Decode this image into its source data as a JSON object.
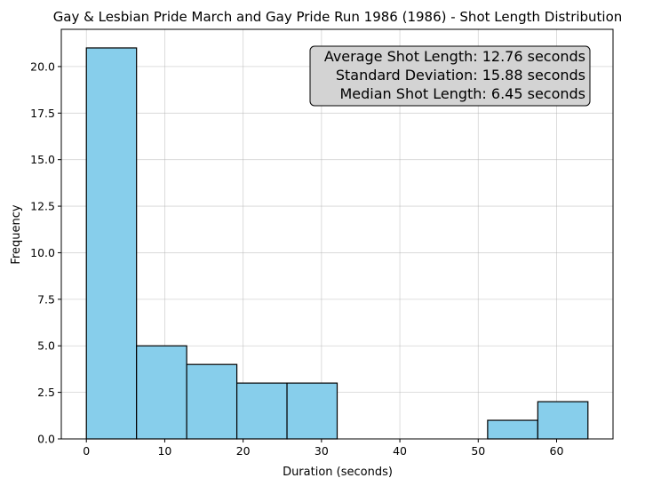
{
  "chart_data": {
    "type": "bar",
    "title": "Gay & Lesbian Pride March and Gay Pride Run 1986 (1986) - Shot Length Distribution",
    "xlabel": "Duration (seconds)",
    "ylabel": "Frequency",
    "xlim": [
      -3.2,
      67.2
    ],
    "ylim": [
      0,
      22
    ],
    "x_ticks": [
      0,
      10,
      20,
      30,
      40,
      50,
      60
    ],
    "x_tick_labels": [
      "0",
      "10",
      "20",
      "30",
      "40",
      "50",
      "60"
    ],
    "y_ticks": [
      0,
      2.5,
      5,
      7.5,
      10,
      12.5,
      15,
      17.5,
      20
    ],
    "y_tick_labels": [
      "0.0",
      "2.5",
      "5.0",
      "7.5",
      "10.0",
      "12.5",
      "15.0",
      "17.5",
      "20.0"
    ],
    "bin_edges": [
      0.0,
      6.4,
      12.8,
      19.2,
      25.6,
      32.0,
      38.4,
      44.8,
      51.2,
      57.6,
      64.0
    ],
    "counts": [
      21,
      5,
      4,
      3,
      3,
      0,
      0,
      0,
      1,
      2
    ],
    "grid": true,
    "bar_color": "#87CEEB",
    "edge_color": "#000000",
    "annotation": {
      "lines": [
        "Average Shot Length: 12.76 seconds",
        "Standard Deviation: 15.88 seconds",
        "Median Shot Length: 6.45 seconds"
      ],
      "placement": "top-right",
      "background": "#d3d3d3"
    }
  }
}
